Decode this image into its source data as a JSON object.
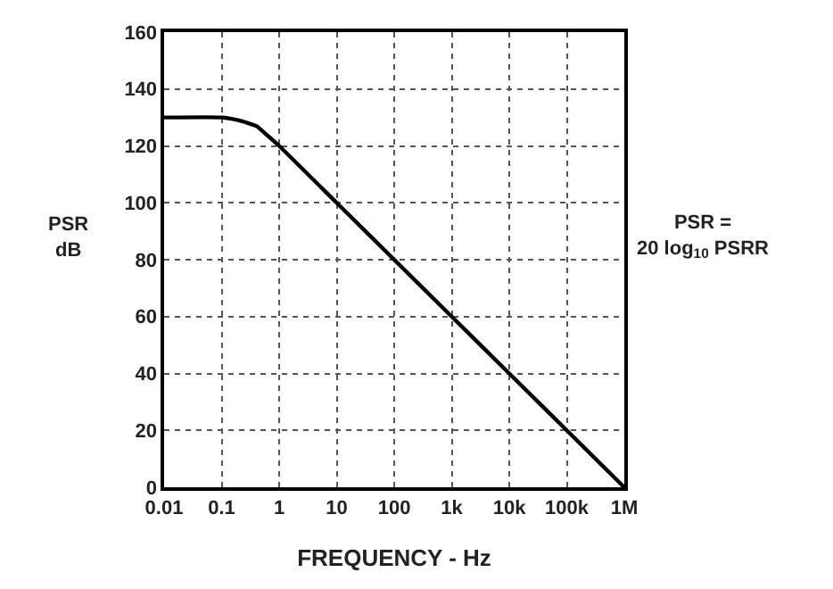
{
  "chart_data": {
    "type": "line",
    "xlabel": "FREQUENCY - Hz",
    "ylabel": "PSR\ndB",
    "annotations": [
      "PSR =\n20 log$_{10}$ PSRR"
    ],
    "x": [
      0.01,
      0.1,
      0.2,
      0.4,
      0.6,
      1,
      10,
      100,
      1000,
      10000,
      100000,
      1000000
    ],
    "series": [
      {
        "color": "#000000",
        "values": [
          130,
          130,
          129,
          127,
          124,
          120,
          100,
          80,
          60,
          40,
          20,
          0
        ]
      }
    ],
    "log": "x",
    "xlim": [
      0.01,
      1000000
    ],
    "xticks": [
      0.01,
      0.1,
      1,
      10,
      100,
      {
        "value": 1000,
        "label": "1k"
      },
      {
        "value": 10000,
        "label": "10k"
      },
      {
        "value": 100000,
        "label": "100k"
      },
      {
        "value": 1000000,
        "label": "1M"
      }
    ],
    "ylim": [
      0,
      160
    ],
    "yticks": [
      0,
      20,
      40,
      60,
      80,
      100,
      120,
      140,
      160
    ],
    "grid": true,
    "line_style": "solid",
    "marker": "none"
  }
}
